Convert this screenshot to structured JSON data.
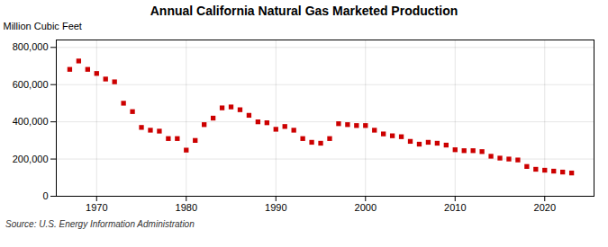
{
  "chart_data": {
    "type": "scatter",
    "title": "Annual California Natural Gas Marketed Production",
    "ylabel": "Million Cubic Feet",
    "source": "Source: U.S. Energy Information Administration",
    "x": [
      1967,
      1968,
      1969,
      1970,
      1971,
      1972,
      1973,
      1974,
      1975,
      1976,
      1977,
      1978,
      1979,
      1980,
      1981,
      1982,
      1983,
      1984,
      1985,
      1986,
      1987,
      1988,
      1989,
      1990,
      1991,
      1992,
      1993,
      1994,
      1995,
      1996,
      1997,
      1998,
      1999,
      2000,
      2001,
      2002,
      2003,
      2004,
      2005,
      2006,
      2007,
      2008,
      2009,
      2010,
      2011,
      2012,
      2013,
      2014,
      2015,
      2016,
      2017,
      2018,
      2019,
      2020,
      2021,
      2022,
      2023
    ],
    "values": [
      682000,
      727000,
      682000,
      660000,
      630000,
      615000,
      500000,
      455000,
      370000,
      355000,
      350000,
      310000,
      310000,
      248000,
      300000,
      385000,
      420000,
      475000,
      480000,
      465000,
      435000,
      400000,
      395000,
      360000,
      375000,
      355000,
      310000,
      290000,
      285000,
      310000,
      390000,
      385000,
      380000,
      380000,
      355000,
      335000,
      325000,
      320000,
      295000,
      280000,
      290000,
      285000,
      275000,
      250000,
      245000,
      245000,
      240000,
      215000,
      205000,
      200000,
      195000,
      160000,
      145000,
      140000,
      135000,
      130000,
      125000
    ],
    "color": "#cc0000",
    "marker": "square",
    "xlim": [
      1965.5,
      2025.5
    ],
    "xticks": [
      1970,
      1980,
      1990,
      2000,
      2010,
      2020
    ],
    "ylim": [
      0,
      840000
    ],
    "yticks": [
      0,
      {
        "value": 200000,
        "label": "200,000"
      },
      {
        "value": 400000,
        "label": "400,000"
      },
      {
        "value": 600000,
        "label": "600,000"
      },
      {
        "value": 800000,
        "label": "800,000"
      }
    ],
    "grid": true
  }
}
